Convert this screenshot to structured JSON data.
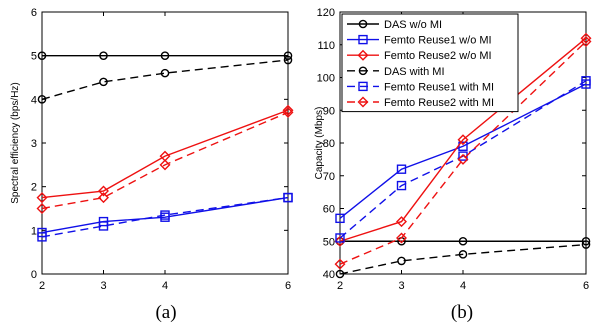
{
  "colors": {
    "black": "#000000",
    "blue": "#1010e8",
    "red": "#ee1111"
  },
  "chart_data": [
    {
      "type": "line",
      "caption": "(a)",
      "xlabel": "",
      "ylabel": "Spectral efficiency (bps/Hz)",
      "x": [
        2,
        3,
        4,
        6
      ],
      "xlim": [
        2,
        6
      ],
      "ylim": [
        0,
        6
      ],
      "xticks": [
        "2",
        "3",
        "4",
        "6"
      ],
      "yticks": [
        "0",
        "1",
        "2",
        "3",
        "4",
        "5",
        "6"
      ],
      "grid": false,
      "legend": null,
      "series": [
        {
          "values": [
            5.0,
            5.0,
            5.0,
            5.0
          ],
          "color": "black",
          "dash": "solid",
          "marker": "circle"
        },
        {
          "values": [
            0.95,
            1.2,
            1.3,
            1.75
          ],
          "color": "blue",
          "dash": "solid",
          "marker": "square"
        },
        {
          "values": [
            1.75,
            1.9,
            2.7,
            3.75
          ],
          "color": "red",
          "dash": "solid",
          "marker": "diamond"
        },
        {
          "values": [
            4.0,
            4.4,
            4.6,
            4.9
          ],
          "color": "black",
          "dash": "dashed",
          "marker": "circle"
        },
        {
          "values": [
            0.85,
            1.1,
            1.35,
            1.75
          ],
          "color": "blue",
          "dash": "dashed",
          "marker": "square"
        },
        {
          "values": [
            1.5,
            1.75,
            2.5,
            3.7
          ],
          "color": "red",
          "dash": "dashed",
          "marker": "diamond"
        }
      ]
    },
    {
      "type": "line",
      "caption": "(b)",
      "xlabel": "",
      "ylabel": "Capacity (Mbps)",
      "x": [
        2,
        3,
        4,
        6
      ],
      "xlim": [
        2,
        6
      ],
      "ylim": [
        40,
        120
      ],
      "xticks": [
        "2",
        "3",
        "4",
        "6"
      ],
      "yticks": [
        "40",
        "50",
        "60",
        "70",
        "80",
        "90",
        "100",
        "110",
        "120"
      ],
      "grid": false,
      "legend": "top-left",
      "series": [
        {
          "name": "DAS w/o MI",
          "values": [
            50,
            50,
            50,
            50
          ],
          "color": "black",
          "dash": "solid",
          "marker": "circle"
        },
        {
          "name": "Femto Reuse1 w/o MI",
          "values": [
            57,
            72,
            79,
            98
          ],
          "color": "blue",
          "dash": "solid",
          "marker": "square"
        },
        {
          "name": "Femto Reuse2 w/o MI",
          "values": [
            50,
            56,
            81,
            112
          ],
          "color": "red",
          "dash": "solid",
          "marker": "diamond"
        },
        {
          "name": "DAS with MI",
          "values": [
            40,
            44,
            46,
            49
          ],
          "color": "black",
          "dash": "dashed",
          "marker": "circle"
        },
        {
          "name": "Femto Reuse1 with MI",
          "values": [
            51,
            67,
            76,
            99
          ],
          "color": "blue",
          "dash": "dashed",
          "marker": "square"
        },
        {
          "name": "Femto Reuse2 with MI",
          "values": [
            43,
            51,
            75,
            111
          ],
          "color": "red",
          "dash": "dashed",
          "marker": "diamond"
        }
      ]
    }
  ]
}
